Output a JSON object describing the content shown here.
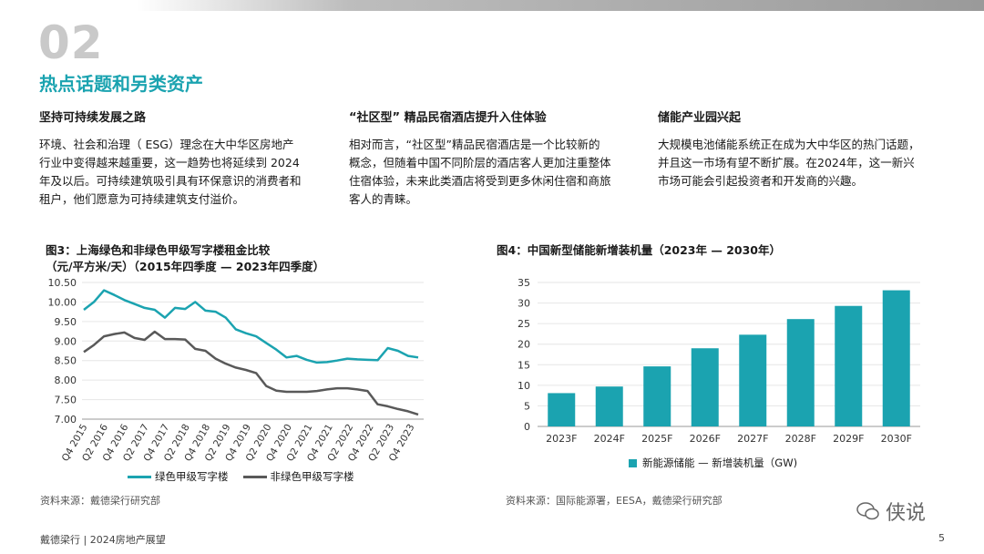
{
  "header": {
    "section_number": "02",
    "section_title": "热点话题和另类资产"
  },
  "columns": [
    {
      "heading": "坚持可持续发展之路",
      "lines": [
        "环境、社会和治理（ ESG）理念在大中华区房地产",
        "行业中变得越来越重要，这一趋势也将延续到 2024",
        "年及以后。可持续建筑吸引具有环保意识的消费者和",
        "租户，他们愿意为可持续建筑支付溢价。"
      ]
    },
    {
      "heading": "“社区型” 精品民宿酒店提升入住体验",
      "lines": [
        "相对而言，“社区型”精品民宿酒店是一个比较新的",
        "概念，但随着中国不同阶层的酒店客人更加注重整体",
        "住宿体验，未来此类酒店将受到更多休闲住宿和商旅",
        "客人的青睐。"
      ]
    },
    {
      "heading": "储能产业园兴起",
      "lines": [
        "大规模电池储能系统正在成为大中华区的热门话题，",
        "并且这一市场有望不断扩展。在2024年，这一新兴",
        "市场可能会引起投资者和开发商的兴趣。"
      ]
    }
  ],
  "chart_data": [
    {
      "type": "line",
      "title": "图3：上海绿色和非绿色甲级写字楼租金比较",
      "subtitle": "（元/平方米/天）（2015年四季度 — 2023年四季度）",
      "ylim": [
        7.0,
        10.5
      ],
      "yticks": [
        "10.50",
        "10.00",
        "9.50",
        "9.00",
        "8.50",
        "8.00",
        "7.50",
        "7.00"
      ],
      "xticks": [
        "Q4 2015",
        "Q2 2016",
        "Q4 2016",
        "Q2 2017",
        "Q4 2017",
        "Q2 2018",
        "Q4 2018",
        "Q2 2019",
        "Q4 2019",
        "Q2 2020",
        "Q4 2020",
        "Q2 2021",
        "Q4 2021",
        "Q2 2022",
        "Q4 2022",
        "Q2 2023",
        "Q4 2023"
      ],
      "series": [
        {
          "name": "绿色甲级写字楼",
          "color": "#1ba3b0",
          "values": [
            9.8,
            10.0,
            10.3,
            10.18,
            10.05,
            9.95,
            9.85,
            9.8,
            9.6,
            9.85,
            9.82,
            10.0,
            9.78,
            9.75,
            9.6,
            9.3,
            9.2,
            9.12,
            8.95,
            8.78,
            8.58,
            8.62,
            8.52,
            8.45,
            8.46,
            8.5,
            8.55,
            8.53,
            8.52,
            8.51,
            8.82,
            8.75,
            8.62,
            8.58
          ]
        },
        {
          "name": "非绿色甲级写字楼",
          "color": "#595959",
          "values": [
            8.72,
            8.9,
            9.12,
            9.18,
            9.22,
            9.08,
            9.03,
            9.24,
            9.05,
            9.05,
            9.04,
            8.8,
            8.75,
            8.55,
            8.42,
            8.32,
            8.26,
            8.18,
            7.85,
            7.73,
            7.7,
            7.7,
            7.7,
            7.72,
            7.76,
            7.79,
            7.79,
            7.76,
            7.72,
            7.38,
            7.33,
            7.26,
            7.2,
            7.12
          ]
        }
      ],
      "source": "资料来源：戴德梁行研究部"
    },
    {
      "type": "bar",
      "title": "图4：中国新型储能新增装机量（2023年 — 2030年）",
      "categories": [
        "2023F",
        "2024F",
        "2025F",
        "2026F",
        "2027F",
        "2028F",
        "2029F",
        "2030F"
      ],
      "series": [
        {
          "name": "新能源储能 — 新增装机量（GW)",
          "color": "#1ba3b0",
          "values": [
            8.1,
            9.7,
            14.6,
            19.0,
            22.3,
            26.1,
            29.3,
            33.1
          ]
        }
      ],
      "ylim": [
        0,
        35
      ],
      "yticks": [
        "35",
        "30",
        "25",
        "20",
        "15",
        "10",
        "5",
        "0"
      ],
      "source": "资料来源：国际能源署，EESA，戴德梁行研究部"
    }
  ],
  "footer": {
    "left": "戴德梁行 | 2024房地产展望",
    "page": "5"
  },
  "watermark": {
    "text": "侠说"
  }
}
